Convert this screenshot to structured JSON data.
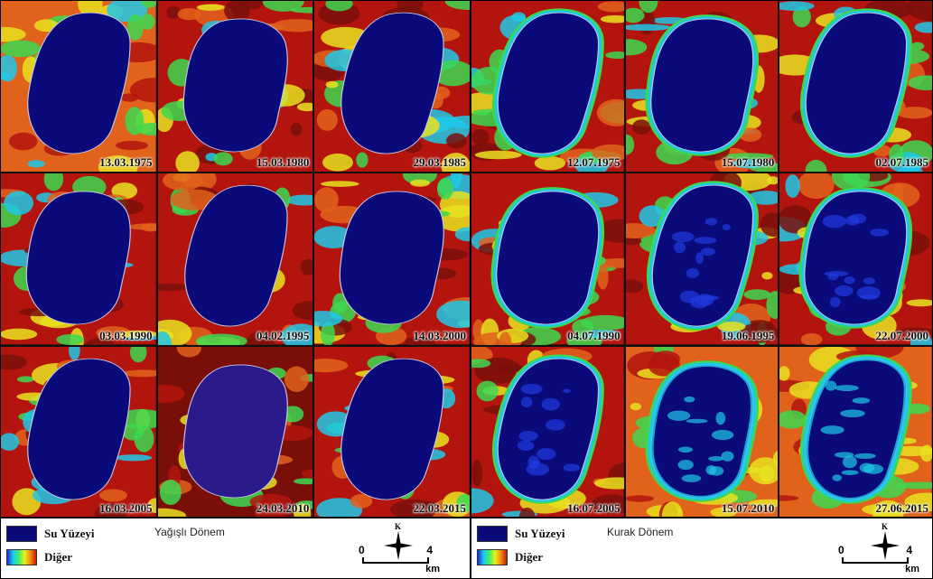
{
  "panels": [
    {
      "period_label": "Yağışlı Dönem",
      "legend": {
        "water_label": "Su Yüzeyi",
        "other_label": "Diğer"
      },
      "scale": {
        "start": "0",
        "end": "4",
        "unit": "km"
      },
      "north_label": "K",
      "tiles": [
        {
          "date": "13.03.1975",
          "variant": "wet-green"
        },
        {
          "date": "15.03.1980",
          "variant": "wet-dark"
        },
        {
          "date": "29.03.1985",
          "variant": "wet-dark"
        },
        {
          "date": "03.03.1990",
          "variant": "wet-dark"
        },
        {
          "date": "04.02.1995",
          "variant": "wet-dark"
        },
        {
          "date": "14.03.2000",
          "variant": "wet-dark"
        },
        {
          "date": "16.03.2005",
          "variant": "wet-dark"
        },
        {
          "date": "24.03.2010",
          "variant": "wet-purple"
        },
        {
          "date": "22.03.2015",
          "variant": "wet-dark"
        }
      ]
    },
    {
      "period_label": "Kurak Dönem",
      "legend": {
        "water_label": "Su Yüzeyi",
        "other_label": "Diğer"
      },
      "scale": {
        "start": "0",
        "end": "4",
        "unit": "km"
      },
      "north_label": "K",
      "tiles": [
        {
          "date": "12.07.1975",
          "variant": "dry-green"
        },
        {
          "date": "15.07.1980",
          "variant": "dry-green"
        },
        {
          "date": "02.07.1985",
          "variant": "dry-green"
        },
        {
          "date": "04.07.1990",
          "variant": "dry-green"
        },
        {
          "date": "19.06.1995",
          "variant": "dry-dark"
        },
        {
          "date": "22.07.2000",
          "variant": "dry-dark"
        },
        {
          "date": "16.07.2005",
          "variant": "dry-dark"
        },
        {
          "date": "15.07.2010",
          "variant": "dry-orange"
        },
        {
          "date": "27.06.2015",
          "variant": "dry-orange"
        }
      ]
    }
  ],
  "colors": {
    "water": "#0a0a7a",
    "red": "#b3150e",
    "dark_red": "#7a0f0a",
    "orange": "#e0621b",
    "yellow": "#e8e21e",
    "green": "#3cd84f",
    "cyan": "#1fc8e8",
    "blue": "#1f3ae0",
    "purple": "#2a1a8a"
  }
}
